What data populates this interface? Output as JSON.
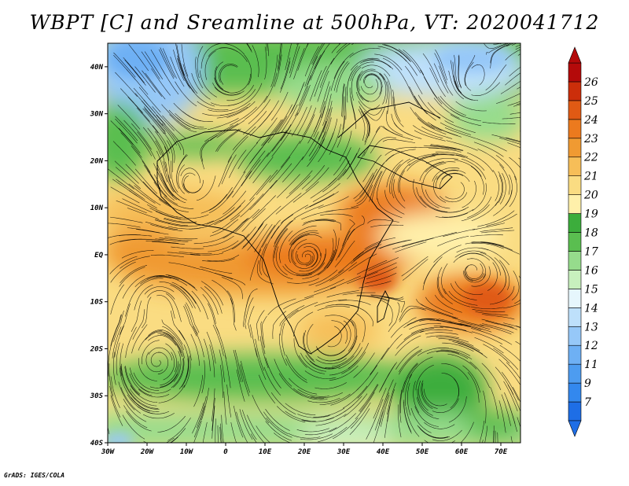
{
  "title": "WBPT [C] and Sreamline at 500hPa, VT: 2020041712",
  "footer": "GrADS: IGES/COLA",
  "map": {
    "lon_range": [
      -30,
      75
    ],
    "lat_range": [
      -40,
      45
    ],
    "lon_ticks": [
      {
        "value": -30,
        "label": "30W"
      },
      {
        "value": -20,
        "label": "20W"
      },
      {
        "value": -10,
        "label": "10W"
      },
      {
        "value": 0,
        "label": "0"
      },
      {
        "value": 10,
        "label": "10E"
      },
      {
        "value": 20,
        "label": "20E"
      },
      {
        "value": 30,
        "label": "30E"
      },
      {
        "value": 40,
        "label": "40E"
      },
      {
        "value": 50,
        "label": "50E"
      },
      {
        "value": 60,
        "label": "60E"
      },
      {
        "value": 70,
        "label": "70E"
      }
    ],
    "lat_ticks": [
      {
        "value": 40,
        "label": "40N"
      },
      {
        "value": 30,
        "label": "30N"
      },
      {
        "value": 20,
        "label": "20N"
      },
      {
        "value": 10,
        "label": "10N"
      },
      {
        "value": 0,
        "label": "EQ"
      },
      {
        "value": -10,
        "label": "10S"
      },
      {
        "value": -20,
        "label": "20S"
      },
      {
        "value": -30,
        "label": "30S"
      },
      {
        "value": -40,
        "label": "40S"
      }
    ]
  },
  "colorbar": {
    "labels": [
      "7",
      "9",
      "11",
      "12",
      "13",
      "14",
      "15",
      "16",
      "17",
      "18",
      "19",
      "20",
      "21",
      "22",
      "23",
      "24",
      "25",
      "26"
    ],
    "colors": [
      "#1e6ee6",
      "#3388ee",
      "#4d9cf0",
      "#6eb0f4",
      "#96c8f8",
      "#bee0fb",
      "#e6f6fc",
      "#c8f0be",
      "#96dc8c",
      "#5abe50",
      "#3cad3c",
      "#fff0aa",
      "#fadc82",
      "#f6be58",
      "#f09a32",
      "#ec7a1e",
      "#e05a14",
      "#cc2e0a",
      "#b40a0a"
    ]
  }
}
